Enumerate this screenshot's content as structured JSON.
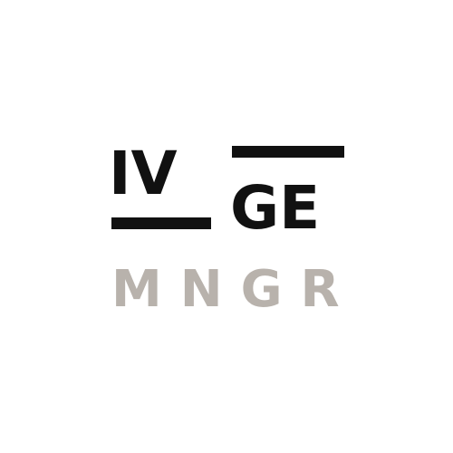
{
  "logo": {
    "line1_left": "IV",
    "line1_right": "GE",
    "line2": "MNGR",
    "colors": {
      "primary": "#111111",
      "secondary": "#b8b2ac",
      "background": "#ffffff"
    }
  }
}
